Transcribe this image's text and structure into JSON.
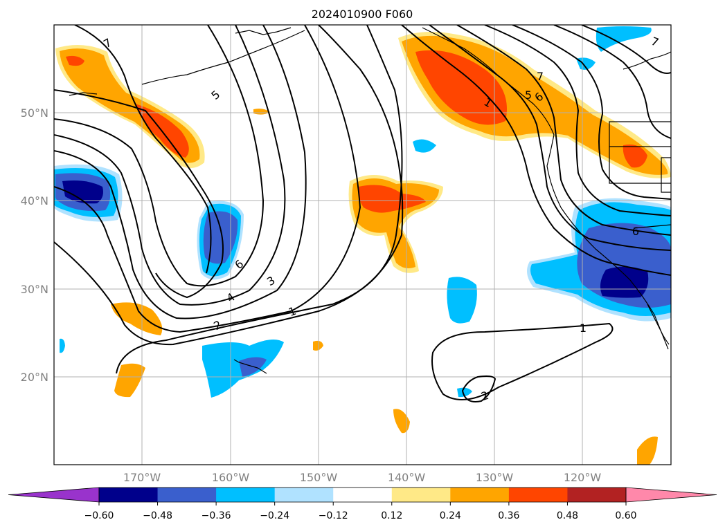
{
  "title": "2024010900 F060",
  "map": {
    "lat_labels": [
      "50°N",
      "40°N",
      "30°N",
      "20°N"
    ],
    "lon_labels": [
      "170°W",
      "160°W",
      "150°W",
      "140°W",
      "130°W",
      "120°W"
    ],
    "extent": {
      "lon": [
        -180,
        -110
      ],
      "lat": [
        10,
        60
      ]
    },
    "grid": true
  },
  "colorbar": {
    "ticks": [
      "−0.60",
      "−0.48",
      "−0.36",
      "−0.24",
      "−0.12",
      "0.12",
      "0.24",
      "0.36",
      "0.48",
      "0.60"
    ],
    "colors": [
      "#9933cc",
      "#00008b",
      "#3a5fcd",
      "#00bfff",
      "#b0e2ff",
      "#ffffff",
      "#ffe987",
      "#ffa500",
      "#ff4500",
      "#b22222",
      "#ff88aa"
    ],
    "extend": "both"
  },
  "contour_labels": [
    {
      "text": "7",
      "name": "contour-label-7-nw"
    },
    {
      "text": "5",
      "name": "contour-label-5-north"
    },
    {
      "text": "6",
      "name": "contour-label-6"
    },
    {
      "text": "3",
      "name": "contour-label-3"
    },
    {
      "text": "4",
      "name": "contour-label-4"
    },
    {
      "text": "2",
      "name": "contour-label-2-west"
    },
    {
      "text": "1",
      "name": "contour-label-1-central"
    },
    {
      "text": "1",
      "name": "contour-label-1-gulf"
    },
    {
      "text": "7",
      "name": "contour-label-7-coast"
    },
    {
      "text": "5",
      "name": "contour-label-5-coast"
    },
    {
      "text": "6",
      "name": "contour-label-6-coast"
    },
    {
      "text": "1",
      "name": "contour-label-1-east"
    },
    {
      "text": "2",
      "name": "contour-label-2-east"
    },
    {
      "text": "6",
      "name": "contour-label-6-sw"
    },
    {
      "text": "7",
      "name": "contour-label-7-ne"
    }
  ]
}
